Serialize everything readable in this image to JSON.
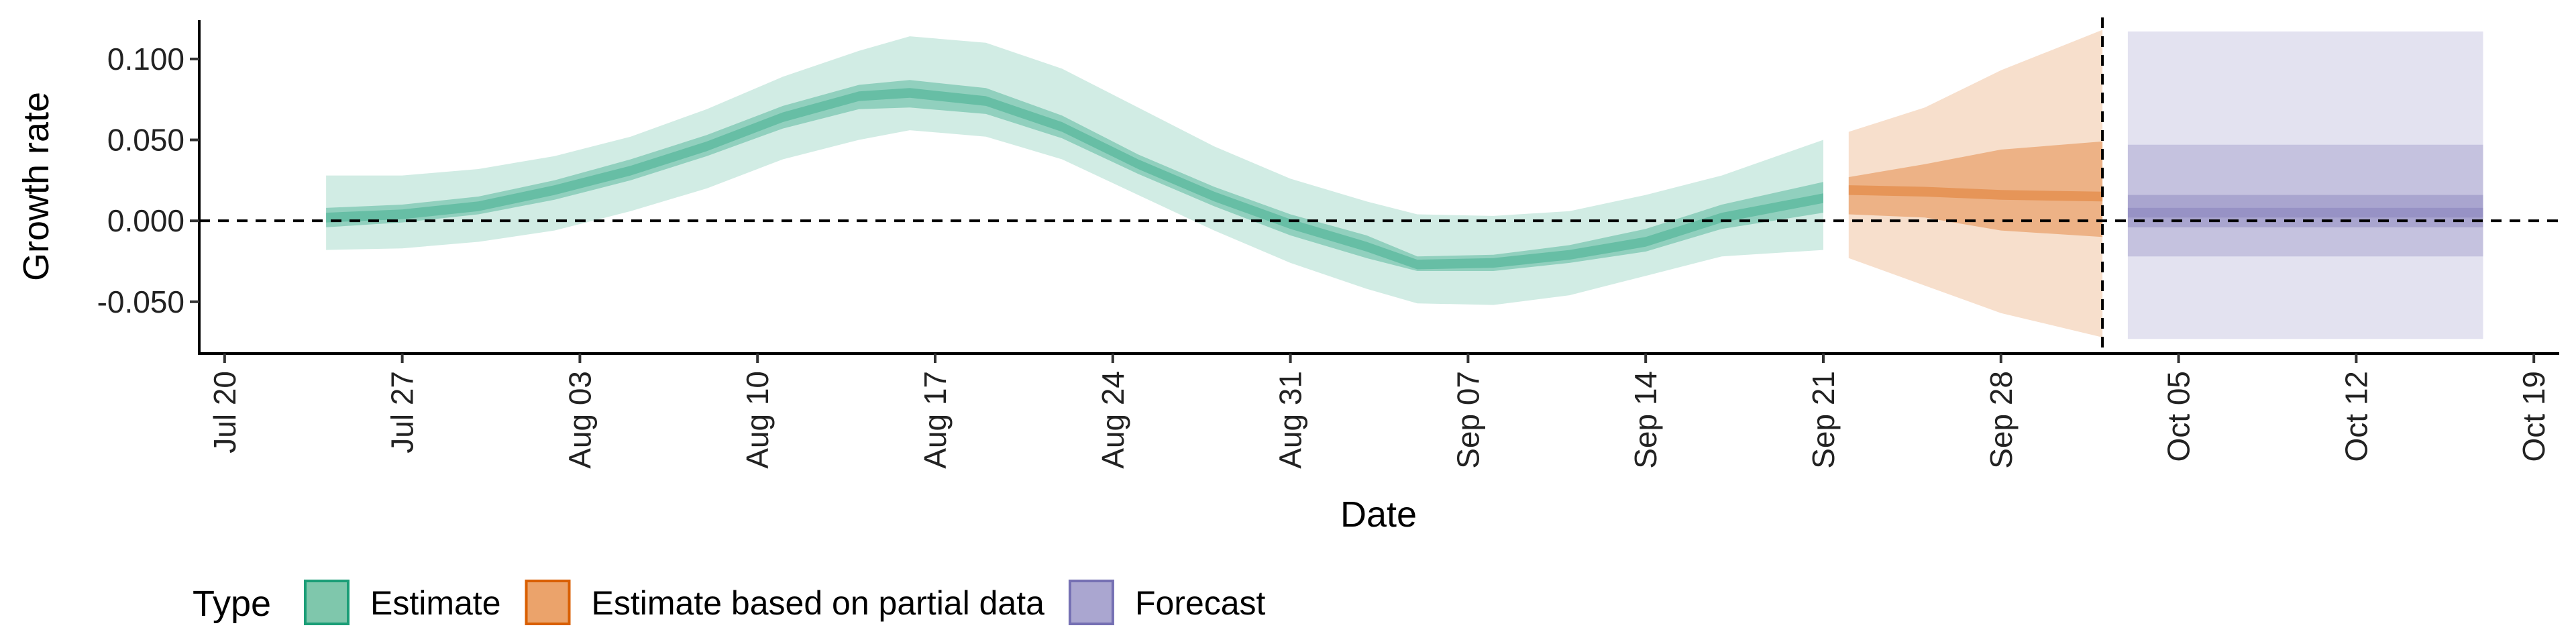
{
  "chart_data": {
    "type": "area",
    "xlabel": "Date",
    "ylabel": "Growth rate",
    "x_range": [
      "2020-07-19",
      "2020-10-20"
    ],
    "ylim": [
      -0.082,
      0.124
    ],
    "x_ticks": [
      {
        "date": "2020-07-20",
        "label": "Jul 20"
      },
      {
        "date": "2020-07-27",
        "label": "Jul 27"
      },
      {
        "date": "2020-08-03",
        "label": "Aug 03"
      },
      {
        "date": "2020-08-10",
        "label": "Aug 10"
      },
      {
        "date": "2020-08-17",
        "label": "Aug 17"
      },
      {
        "date": "2020-08-24",
        "label": "Aug 24"
      },
      {
        "date": "2020-08-31",
        "label": "Aug 31"
      },
      {
        "date": "2020-09-07",
        "label": "Sep 07"
      },
      {
        "date": "2020-09-14",
        "label": "Sep 14"
      },
      {
        "date": "2020-09-21",
        "label": "Sep 21"
      },
      {
        "date": "2020-09-28",
        "label": "Sep 28"
      },
      {
        "date": "2020-10-05",
        "label": "Oct 05"
      },
      {
        "date": "2020-10-12",
        "label": "Oct 12"
      },
      {
        "date": "2020-10-19",
        "label": "Oct 19"
      }
    ],
    "y_ticks": [
      {
        "value": 0.1,
        "label": "0.100"
      },
      {
        "value": 0.05,
        "label": "0.050"
      },
      {
        "value": 0.0,
        "label": "0.000"
      },
      {
        "value": -0.05,
        "label": "-0.050"
      }
    ],
    "grid": false,
    "reference_lines": [
      {
        "axis": "y",
        "value": 0.0,
        "style": "dashed"
      },
      {
        "axis": "x",
        "value": "2020-10-02",
        "style": "dashed"
      }
    ],
    "legend": {
      "title": "Type",
      "position": "bottom-left",
      "entries": [
        {
          "label": "Estimate",
          "fill": "#7fc7ac",
          "border": "#1b9e77"
        },
        {
          "label": "Estimate based on partial data",
          "fill": "#eba36b",
          "border": "#d95f02"
        },
        {
          "label": "Forecast",
          "fill": "#aaa6d0",
          "border": "#7570b3"
        }
      ]
    },
    "series": [
      {
        "name": "Estimate",
        "color": "#1b9e77",
        "x": [
          "2020-07-24",
          "2020-07-27",
          "2020-07-30",
          "2020-08-02",
          "2020-08-05",
          "2020-08-08",
          "2020-08-11",
          "2020-08-14",
          "2020-08-16",
          "2020-08-19",
          "2020-08-22",
          "2020-08-25",
          "2020-08-28",
          "2020-08-31",
          "2020-09-03",
          "2020-09-05",
          "2020-09-08",
          "2020-09-11",
          "2020-09-14",
          "2020-09-17",
          "2020-09-21"
        ],
        "median": [
          0.002,
          0.004,
          0.009,
          0.019,
          0.031,
          0.046,
          0.064,
          0.077,
          0.079,
          0.074,
          0.058,
          0.035,
          0.015,
          -0.002,
          -0.016,
          -0.027,
          -0.026,
          -0.021,
          -0.013,
          0.002,
          0.014
        ],
        "inner_lower": [
          -0.004,
          -0.001,
          0.004,
          0.013,
          0.025,
          0.04,
          0.057,
          0.069,
          0.07,
          0.066,
          0.051,
          0.029,
          0.009,
          -0.009,
          -0.023,
          -0.031,
          -0.031,
          -0.026,
          -0.019,
          -0.005,
          0.005
        ],
        "inner_upper": [
          0.008,
          0.01,
          0.015,
          0.025,
          0.038,
          0.053,
          0.071,
          0.084,
          0.087,
          0.082,
          0.065,
          0.041,
          0.021,
          0.004,
          -0.009,
          -0.022,
          -0.021,
          -0.015,
          -0.005,
          0.01,
          0.024
        ],
        "outer_lower": [
          -0.018,
          -0.017,
          -0.013,
          -0.006,
          0.006,
          0.02,
          0.038,
          0.05,
          0.056,
          0.052,
          0.038,
          0.016,
          -0.006,
          -0.026,
          -0.042,
          -0.051,
          -0.052,
          -0.046,
          -0.034,
          -0.022,
          -0.018
        ],
        "outer_upper": [
          0.028,
          0.028,
          0.032,
          0.04,
          0.052,
          0.069,
          0.089,
          0.105,
          0.114,
          0.11,
          0.094,
          0.07,
          0.046,
          0.026,
          0.012,
          0.004,
          0.003,
          0.006,
          0.016,
          0.028,
          0.05
        ]
      },
      {
        "name": "Estimate based on partial data",
        "color": "#d95f02",
        "x": [
          "2020-09-22",
          "2020-09-25",
          "2020-09-28",
          "2020-10-02"
        ],
        "median": [
          0.019,
          0.018,
          0.016,
          0.015
        ],
        "inner_lower": [
          0.004,
          0.002,
          -0.006,
          -0.01
        ],
        "inner_upper": [
          0.027,
          0.035,
          0.044,
          0.049
        ],
        "outer_lower": [
          -0.023,
          -0.04,
          -0.057,
          -0.072
        ],
        "outer_upper": [
          0.055,
          0.07,
          0.093,
          0.118
        ]
      },
      {
        "name": "Forecast",
        "color": "#7570b3",
        "x": [
          "2020-10-03",
          "2020-10-17"
        ],
        "median": [
          0.005,
          0.005
        ],
        "inner_lower": [
          -0.004,
          -0.004
        ],
        "inner_upper": [
          0.016,
          0.016
        ],
        "mid_lower": [
          -0.022,
          -0.022
        ],
        "mid_upper": [
          0.047,
          0.047
        ],
        "outer_lower": [
          -0.073,
          -0.073
        ],
        "outer_upper": [
          0.117,
          0.117
        ]
      }
    ]
  }
}
